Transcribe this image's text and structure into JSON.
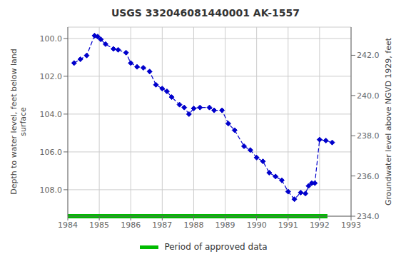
{
  "chart_data": {
    "type": "line",
    "title": "USGS 332046081440001 AK-1557",
    "y_label": "Depth to water level, feet below land\nsurface",
    "y2_label": "Groundwater level above NGVD 1929, feet",
    "x": [
      1984.2,
      1984.4,
      1984.6,
      1984.85,
      1984.95,
      1985.05,
      1985.2,
      1985.45,
      1985.6,
      1985.85,
      1986.0,
      1986.2,
      1986.4,
      1986.6,
      1986.8,
      1987.0,
      1987.15,
      1987.3,
      1987.55,
      1987.7,
      1987.85,
      1988.0,
      1988.2,
      1988.5,
      1988.65,
      1988.9,
      1989.1,
      1989.3,
      1989.6,
      1989.8,
      1990.0,
      1990.2,
      1990.4,
      1990.6,
      1990.8,
      1991.0,
      1991.2,
      1991.4,
      1991.55,
      1991.65,
      1991.75,
      1991.85,
      1992.0,
      1992.2,
      1992.4
    ],
    "values": [
      101.3,
      101.1,
      100.9,
      99.85,
      99.9,
      100.05,
      100.3,
      100.55,
      100.6,
      100.75,
      101.3,
      101.5,
      101.55,
      101.75,
      102.45,
      102.65,
      102.8,
      103.1,
      103.5,
      103.65,
      104.0,
      103.7,
      103.65,
      103.65,
      103.8,
      103.8,
      104.5,
      104.85,
      105.7,
      105.9,
      106.3,
      106.5,
      107.1,
      107.3,
      107.5,
      108.1,
      108.5,
      108.15,
      108.2,
      107.8,
      107.65,
      107.65,
      105.35,
      105.4,
      105.5
    ],
    "color": "#0000cc",
    "marker": "diamond",
    "line_style": "dashed",
    "xlim": [
      1984,
      1993
    ],
    "xticks": [
      1984,
      1985,
      1986,
      1987,
      1988,
      1989,
      1990,
      1991,
      1992,
      1993
    ],
    "ylim": [
      109.4,
      99.4
    ],
    "yticks": [
      {
        "value": 100.0,
        "label": "100.0"
      },
      {
        "value": 102.0,
        "label": "102.0"
      },
      {
        "value": 104.0,
        "label": "104.0"
      },
      {
        "value": 106.0,
        "label": "106.0"
      },
      {
        "value": 108.0,
        "label": "108.0"
      }
    ],
    "y2lim": [
      234.0,
      243.4
    ],
    "y2ticks": [
      {
        "value": 242.0,
        "label": "242.0"
      },
      {
        "value": 240.0,
        "label": "240.0"
      },
      {
        "value": 238.0,
        "label": "238.0"
      },
      {
        "value": 236.0,
        "label": "236.0"
      },
      {
        "value": 234.0,
        "label": "234.0"
      }
    ],
    "grid": true,
    "legend": "bottom",
    "period": {
      "label": "Period of approved data",
      "color": "#00bb00",
      "x": [
        1984.0,
        1992.25
      ]
    }
  }
}
